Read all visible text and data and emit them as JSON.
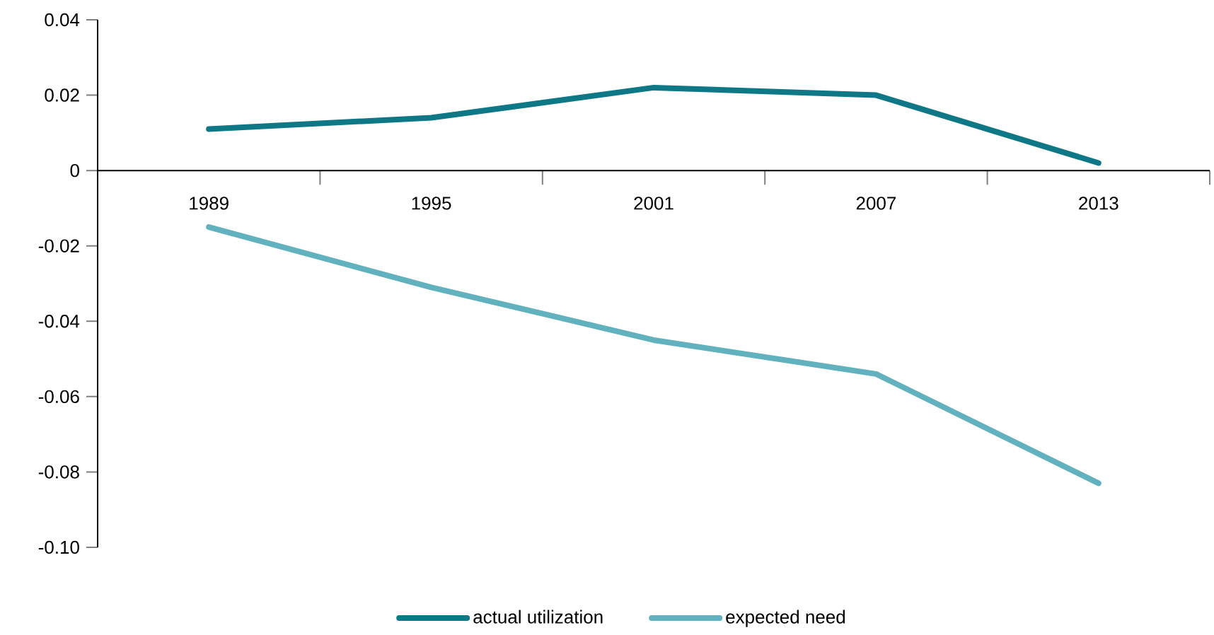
{
  "chart_data": {
    "type": "line",
    "categories": [
      "1989",
      "1995",
      "2001",
      "2007",
      "2013"
    ],
    "series": [
      {
        "name": "actual utilization",
        "color": "#0f7886",
        "values": [
          0.011,
          0.014,
          0.022,
          0.02,
          0.002
        ]
      },
      {
        "name": "expected need",
        "color": "#62b1be",
        "values": [
          -0.015,
          -0.031,
          -0.045,
          -0.054,
          -0.083
        ]
      }
    ],
    "ylim": [
      -0.1,
      0.04
    ],
    "yticks": [
      0.04,
      0.02,
      0,
      -0.02,
      -0.04,
      -0.06,
      -0.08,
      {
        "value": -0.1,
        "label": "-0.10"
      }
    ],
    "legend": "bottom"
  }
}
